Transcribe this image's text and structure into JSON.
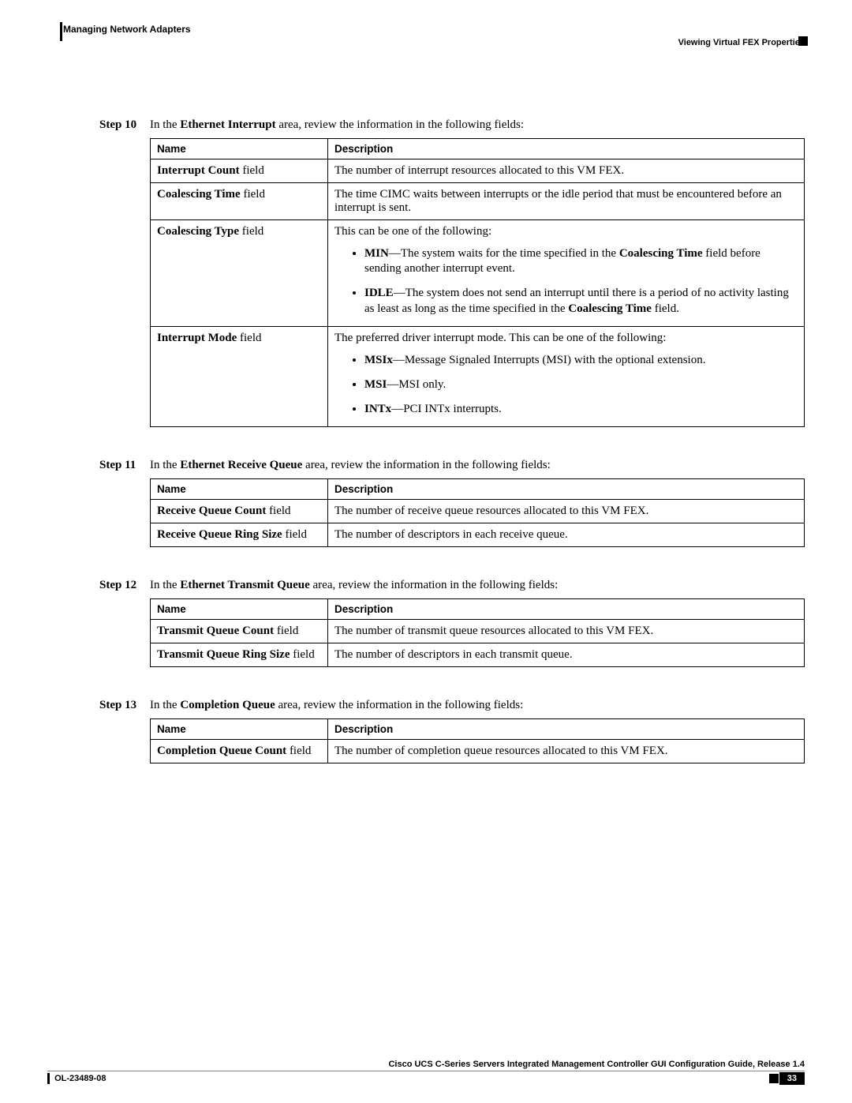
{
  "header": {
    "chapter": "Managing Network Adapters",
    "section": "Viewing Virtual FEX Properties"
  },
  "columns": {
    "name": "Name",
    "desc": "Description"
  },
  "steps": {
    "s10": {
      "label": "Step 10",
      "intro_a": "In the ",
      "intro_b": "Ethernet Interrupt",
      "intro_c": " area, review the information in the following fields:",
      "rows": {
        "r1": {
          "name_b": "Interrupt Count",
          "name_t": " field",
          "desc": "The number of interrupt resources allocated to this VM FEX."
        },
        "r2": {
          "name_b": "Coalescing Time",
          "name_t": " field",
          "desc": "The time CIMC waits between interrupts or the idle period that must be encountered before an interrupt is sent."
        },
        "r3": {
          "name_b": "Coalescing Type",
          "name_t": " field",
          "lead": "This can be one of the following:",
          "b1a": "MIN",
          "b1b": "—The system waits for the time specified in the ",
          "b1c": "Coalescing Time",
          "b1d": " field before sending another interrupt event.",
          "b2a": "IDLE",
          "b2b": "—The system does not send an interrupt until there is a period of no activity lasting as least as long as the time specified in the ",
          "b2c": "Coalescing Time",
          "b2d": " field."
        },
        "r4": {
          "name_b": "Interrupt Mode",
          "name_t": " field",
          "lead": "The preferred driver interrupt mode. This can be one of the following:",
          "b1a": "MSIx",
          "b1b": "—Message Signaled Interrupts (MSI) with the optional extension.",
          "b2a": "MSI",
          "b2b": "—MSI only.",
          "b3a": "INTx",
          "b3b": "—PCI INTx interrupts."
        }
      }
    },
    "s11": {
      "label": "Step 11",
      "intro_a": "In the ",
      "intro_b": "Ethernet Receive Queue",
      "intro_c": " area, review the information in the following fields:",
      "rows": {
        "r1": {
          "name_b": "Receive Queue Count",
          "name_t": " field",
          "desc": "The number of receive queue resources allocated to this VM FEX."
        },
        "r2": {
          "name_b": "Receive Queue Ring Size",
          "name_t": " field",
          "desc": "The number of descriptors in each receive queue."
        }
      }
    },
    "s12": {
      "label": "Step 12",
      "intro_a": "In the ",
      "intro_b": "Ethernet Transmit Queue",
      "intro_c": " area, review the information in the following fields:",
      "rows": {
        "r1": {
          "name_b": "Transmit Queue Count",
          "name_t": " field",
          "desc": "The number of transmit queue resources allocated to this VM FEX."
        },
        "r2": {
          "name_b": "Transmit Queue Ring Size",
          "name_t": " field",
          "desc": "The number of descriptors in each transmit queue."
        }
      }
    },
    "s13": {
      "label": "Step 13",
      "intro_a": "In the ",
      "intro_b": "Completion Queue",
      "intro_c": " area, review the information in the following fields:",
      "rows": {
        "r1": {
          "name_b": "Completion Queue Count",
          "name_t": " field",
          "desc": "The number of completion queue resources allocated to this VM FEX."
        }
      }
    }
  },
  "footer": {
    "guide": "Cisco UCS C-Series Servers Integrated Management Controller GUI Configuration Guide, Release 1.4",
    "doc": "OL-23489-08",
    "page": "33"
  }
}
